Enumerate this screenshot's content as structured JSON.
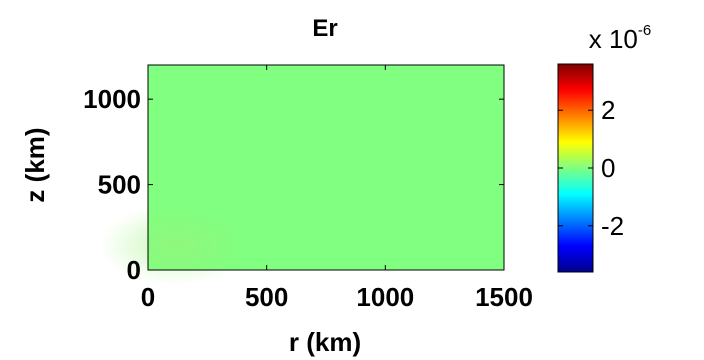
{
  "chart_data": {
    "type": "heatmap",
    "title": "Er",
    "xlabel": "r (km)",
    "ylabel": "z (km)",
    "xlim": [
      0,
      1500
    ],
    "ylim": [
      0,
      1200
    ],
    "xticks": [
      "0",
      "500",
      "1000",
      "1500"
    ],
    "yticks": [
      "0",
      "500",
      "1000"
    ],
    "field_value": 0,
    "field_color": "#80ff80",
    "colorbar": {
      "exponent_label_base": "x 10",
      "exponent_label_power": "-6",
      "range": [
        -3.6,
        3.6
      ],
      "ticks": [
        "-2",
        "0",
        "2"
      ],
      "colormap": "jet"
    }
  }
}
